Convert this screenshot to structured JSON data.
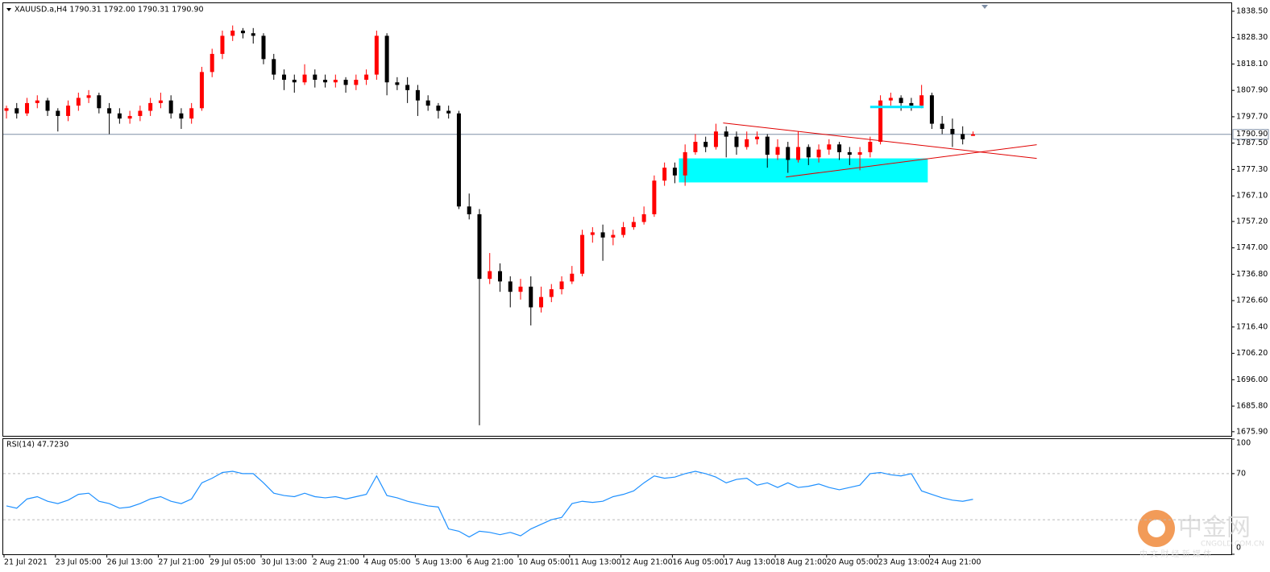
{
  "chart_data": [
    {
      "type": "candlestick",
      "title": "XAUUSD.a,H4  1790.31 1792.00 1790.31 1790.90",
      "bull_color": "#ff0000",
      "bear_color": "#000000",
      "open": [
        1800,
        1801,
        1799,
        1803,
        1804,
        1800,
        1798,
        1802,
        1805,
        1806,
        1801,
        1799,
        1797,
        1798,
        1800,
        1803,
        1804,
        1799,
        1797,
        1801,
        1815,
        1822,
        1829,
        1831,
        1830,
        1829,
        1820,
        1814,
        1812,
        1811,
        1814,
        1812,
        1811,
        1812,
        1810,
        1812,
        1814,
        1829,
        1811,
        1810,
        1808,
        1804,
        1802,
        1800,
        1799,
        1763,
        1760,
        1735,
        1738,
        1734,
        1730,
        1732,
        1724,
        1728,
        1731,
        1734,
        1737,
        1752,
        1753,
        1751,
        1752,
        1755,
        1757,
        1760,
        1773,
        1778,
        1775,
        1784,
        1788,
        1786,
        1792,
        1790,
        1786,
        1789,
        1790,
        1783,
        1786,
        1781,
        1786,
        1782,
        1785,
        1787,
        1784,
        1783,
        1784,
        1788,
        1804,
        1805,
        1803,
        1802,
        1806,
        1795,
        1793,
        1791,
        1790.31
      ],
      "high": [
        1802,
        1803,
        1805,
        1806,
        1805,
        1801,
        1804,
        1807,
        1808,
        1807,
        1803,
        1801,
        1800,
        1802,
        1805,
        1807,
        1806,
        1801,
        1803,
        1817,
        1824,
        1831,
        1833,
        1832,
        1832,
        1830,
        1822,
        1816,
        1814,
        1818,
        1816,
        1814,
        1814,
        1813,
        1814,
        1816,
        1831,
        1830,
        1813,
        1813,
        1810,
        1806,
        1803,
        1802,
        1800,
        1768,
        1762,
        1745,
        1741,
        1736,
        1735,
        1736,
        1732,
        1733,
        1736,
        1740,
        1754,
        1755,
        1756,
        1754,
        1757,
        1759,
        1763,
        1775,
        1780,
        1780,
        1787,
        1791,
        1790,
        1795,
        1794,
        1792,
        1792,
        1792,
        1791,
        1789,
        1788,
        1792,
        1787,
        1787,
        1789,
        1788,
        1786,
        1786,
        1790,
        1806,
        1807,
        1806,
        1805,
        1810,
        1807,
        1798,
        1797,
        1794,
        1792.0
      ],
      "low": [
        1797,
        1797,
        1798,
        1801,
        1798,
        1792,
        1796,
        1800,
        1803,
        1799,
        1791,
        1795,
        1795,
        1796,
        1798,
        1801,
        1797,
        1793,
        1795,
        1800,
        1813,
        1820,
        1827,
        1828,
        1826,
        1818,
        1812,
        1808,
        1807,
        1810,
        1809,
        1809,
        1809,
        1807,
        1808,
        1810,
        1812,
        1806,
        1808,
        1803,
        1798,
        1800,
        1797,
        1797,
        1762,
        1758,
        1678.4,
        1733,
        1730,
        1724,
        1727,
        1717,
        1722,
        1726,
        1729,
        1733,
        1736,
        1749,
        1742,
        1748,
        1751,
        1754,
        1756,
        1759,
        1771,
        1772,
        1771,
        1783,
        1784,
        1785,
        1782,
        1783,
        1785,
        1787,
        1778,
        1781,
        1776,
        1780,
        1779,
        1780,
        1783,
        1781,
        1779,
        1777,
        1782,
        1787,
        1802,
        1800,
        1800,
        1801,
        1793,
        1791,
        1786,
        1787,
        1790.31
      ],
      "close": [
        1801,
        1799,
        1803,
        1804,
        1800,
        1798,
        1802,
        1805,
        1806,
        1801,
        1799,
        1797,
        1798,
        1800,
        1803,
        1804,
        1799,
        1797,
        1801,
        1815,
        1822,
        1829,
        1831,
        1830,
        1829,
        1820,
        1814,
        1812,
        1811,
        1814,
        1812,
        1811,
        1812,
        1810,
        1812,
        1814,
        1829,
        1811,
        1810,
        1808,
        1804,
        1802,
        1800,
        1799,
        1763,
        1760,
        1735,
        1738,
        1734,
        1730,
        1732,
        1724,
        1728,
        1731,
        1734,
        1737,
        1752,
        1753,
        1751,
        1752,
        1755,
        1757,
        1760,
        1773,
        1778,
        1775,
        1784,
        1788,
        1786,
        1792,
        1790,
        1786,
        1789,
        1790,
        1783,
        1786,
        1781,
        1786,
        1782,
        1785,
        1787,
        1784,
        1783,
        1784,
        1788,
        1804,
        1805,
        1803,
        1802,
        1806,
        1795,
        1793,
        1791,
        1789,
        1790.9
      ],
      "ylim": [
        1674.3,
        1841.6
      ],
      "yticks": [
        {
          "value": 1838.5,
          "label": "1838.50"
        },
        {
          "value": 1828.3,
          "label": "1828.30"
        },
        {
          "value": 1818.1,
          "label": "1818.10"
        },
        {
          "value": 1807.9,
          "label": "1807.90"
        },
        {
          "value": 1797.7,
          "label": "1797.70"
        },
        {
          "value": 1787.5,
          "label": "1787.50"
        },
        {
          "value": 1777.3,
          "label": "1777.30"
        },
        {
          "value": 1767.1,
          "label": "1767.10"
        },
        {
          "value": 1757.2,
          "label": "1757.20"
        },
        {
          "value": 1747.0,
          "label": "1747.00"
        },
        {
          "value": 1736.8,
          "label": "1736.80"
        },
        {
          "value": 1726.6,
          "label": "1726.60"
        },
        {
          "value": 1716.4,
          "label": "1716.40"
        },
        {
          "value": 1706.2,
          "label": "1706.20"
        },
        {
          "value": 1696.0,
          "label": "1696.00"
        },
        {
          "value": 1685.8,
          "label": "1685.80"
        },
        {
          "value": 1675.9,
          "label": "1675.90"
        }
      ],
      "current_price": {
        "value": 1790.9,
        "label": "1790.90"
      },
      "zones": [
        {
          "x": [
            65.4,
            89.6
          ],
          "y": [
            1772.3,
            1781.6
          ],
          "color": "#00ffff"
        }
      ],
      "segments": [
        {
          "x": [
            69.7,
            100.2
          ],
          "y": [
            1795.3,
            1781.6
          ],
          "color": "#e00000",
          "width": 1
        },
        {
          "x": [
            75.8,
            100.2
          ],
          "y": [
            1774.4,
            1786.9
          ],
          "color": "#e00000",
          "width": 1
        },
        {
          "x": [
            84,
            89.2
          ],
          "y": [
            1801.5,
            1801.5
          ],
          "color": "#00e5ff",
          "width": 3
        }
      ]
    },
    {
      "type": "line",
      "title": "RSI(14) 47.7230",
      "color": "#1e90ff",
      "values": [
        42,
        40,
        48,
        50,
        46,
        44,
        47,
        52,
        53,
        46,
        44,
        40,
        41,
        44,
        48,
        50,
        46,
        44,
        48,
        62,
        66,
        71,
        72,
        70,
        70,
        62,
        53,
        51,
        50,
        53,
        50,
        49,
        50,
        48,
        50,
        52,
        68,
        51,
        49,
        46,
        44,
        42,
        41,
        22,
        20,
        15,
        20,
        19,
        17,
        19,
        16,
        22,
        26,
        30,
        32,
        44,
        46,
        45,
        46,
        50,
        52,
        55,
        62,
        68,
        66,
        67,
        70,
        72,
        70,
        67,
        62,
        65,
        66,
        60,
        62,
        58,
        62,
        58,
        59,
        61,
        58,
        56,
        58,
        60,
        70,
        71,
        69,
        68,
        70,
        55,
        52,
        49,
        47,
        46,
        47.723
      ],
      "categories": [
        "21 Jul 2021",
        null,
        null,
        null,
        null,
        "23 Jul 05:00",
        null,
        null,
        null,
        null,
        "26 Jul 13:00",
        null,
        null,
        null,
        null,
        "27 Jul 21:00",
        null,
        null,
        null,
        null,
        "29 Jul 05:00",
        null,
        null,
        null,
        null,
        "30 Jul 13:00",
        null,
        null,
        null,
        null,
        "2 Aug 21:00",
        null,
        null,
        null,
        null,
        "4 Aug 05:00",
        null,
        null,
        null,
        null,
        "5 Aug 13:00",
        null,
        null,
        null,
        null,
        "6 Aug 21:00",
        null,
        null,
        null,
        null,
        "10 Aug 05:00",
        null,
        null,
        null,
        null,
        "11 Aug 13:00",
        null,
        null,
        null,
        null,
        "12 Aug 21:00",
        null,
        null,
        null,
        null,
        "16 Aug 05:00",
        null,
        null,
        null,
        null,
        "17 Aug 13:00",
        null,
        null,
        null,
        null,
        "18 Aug 21:00",
        null,
        null,
        null,
        null,
        "20 Aug 05:00",
        null,
        null,
        null,
        null,
        "23 Aug 13:00",
        null,
        null,
        null,
        null,
        "24 Aug 21:00",
        null,
        null,
        null,
        null
      ],
      "ylim": [
        0,
        100
      ],
      "yticks": [
        100,
        70,
        0
      ],
      "levels": [
        70,
        30
      ]
    }
  ],
  "watermark": {
    "name": "中金网",
    "site": "CNGOLD.COM.CN",
    "slogan": "中 文 财 经 新 媒 体"
  }
}
